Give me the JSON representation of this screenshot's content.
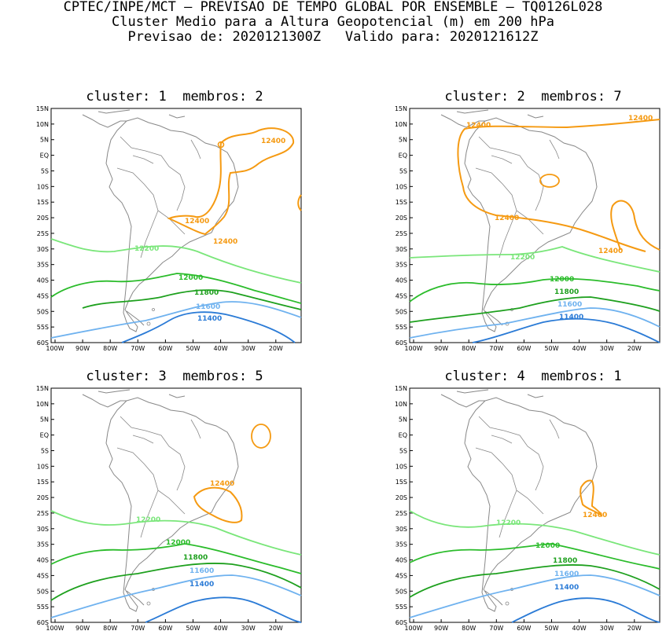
{
  "header": {
    "line1": "CPTEC/INPE/MCT — PREVISAO DE TEMPO GLOBAL POR ENSEMBLE — TQ0126L028",
    "line2": "Cluster Medio para a Altura Geopotencial (m) em 200 hPa",
    "line3": "Previsao de: 2020121300Z   Valido para: 2020121612Z"
  },
  "axes": {
    "lat_labels": [
      "15N",
      "10N",
      "5N",
      "EQ",
      "5S",
      "10S",
      "15S",
      "20S",
      "25S",
      "30S",
      "35S",
      "40S",
      "45S",
      "50S",
      "55S",
      "60S"
    ],
    "lon_labels": [
      "100W",
      "90W",
      "80W",
      "70W",
      "60W",
      "50W",
      "40W",
      "30W",
      "20W"
    ]
  },
  "colors": {
    "c11400": "#2b7bd6",
    "c11600": "#6fb2ef",
    "c11800": "#1ea01e",
    "c12000": "#2bbc2b",
    "c12200": "#7ae67a",
    "c12400": "#f59a12",
    "coast": "#888888"
  },
  "panels": [
    {
      "title": "cluster: 1  membros: 2",
      "labels": {
        "l12400a": "12400",
        "l12400b": "12400",
        "l12400c": "12400",
        "l12200": "12200",
        "l12000": "12000",
        "l11800": "11800",
        "l11600": "11600",
        "l11400": "11400"
      }
    },
    {
      "title": "cluster: 2  membros: 7",
      "labels": {
        "l12400a": "12400",
        "l12400b": "12400",
        "l12400c": "12400",
        "l12400d": "12400",
        "l12200": "12200",
        "l12000": "12000",
        "l11800": "11800",
        "l11600": "11600",
        "l11400": "11400"
      }
    },
    {
      "title": "cluster: 3  membros: 5",
      "labels": {
        "l12400a": "12400",
        "l12200": "12200",
        "l12000": "12000",
        "l11800": "11800",
        "l11600": "11600",
        "l11400": "11400"
      }
    },
    {
      "title": "cluster: 4  membros: 1",
      "labels": {
        "l12400a": "12400",
        "l12200": "12200",
        "l12000": "12000",
        "l11800": "11800",
        "l11600": "11600",
        "l11400": "11400"
      }
    }
  ]
}
